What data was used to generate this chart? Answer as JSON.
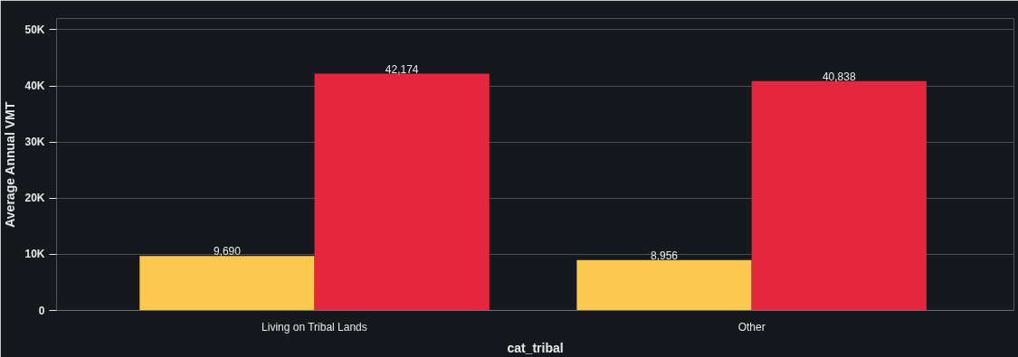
{
  "chart_data": {
    "type": "bar",
    "xlabel": "cat_tribal",
    "ylabel": "Average Annual VMT",
    "categories": [
      "Living on Tribal Lands",
      "Other"
    ],
    "series": [
      {
        "color": "#fcc84d",
        "values": [
          9690,
          8956
        ],
        "value_labels": [
          "9,690",
          "8,956"
        ]
      },
      {
        "color": "#e6253f",
        "values": [
          42174,
          40838
        ],
        "value_labels": [
          "42,174",
          "40,838"
        ]
      }
    ],
    "ylim": [
      0,
      52000
    ],
    "yticks": [
      0,
      {
        "value": 10000,
        "label": "10K"
      },
      {
        "value": 20000,
        "label": "20K"
      },
      {
        "value": 30000,
        "label": "30K"
      },
      {
        "value": 40000,
        "label": "40K"
      },
      {
        "value": 50000,
        "label": "50K"
      }
    ],
    "grid": "y"
  }
}
